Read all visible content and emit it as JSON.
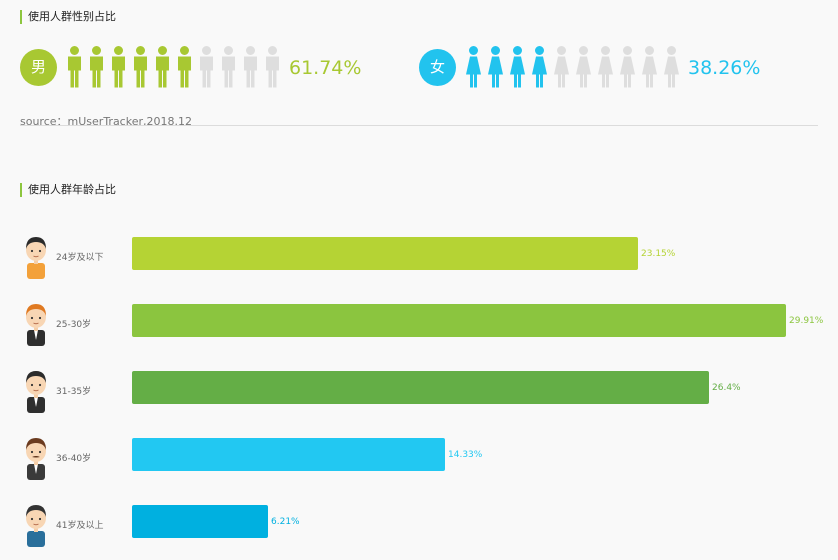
{
  "gender_section": {
    "title": "使用人群性别占比",
    "male": {
      "symbol": "男",
      "percent_label": "61.74%",
      "value": 61.74,
      "color": "#a8c832",
      "filled_icons": 6,
      "total_icons": 10
    },
    "female": {
      "symbol": "女",
      "percent_label": "38.26%",
      "value": 38.26,
      "color": "#22c3ee",
      "filled_icons": 4,
      "total_icons": 10
    },
    "source": "source：mUserTracker,2018.12"
  },
  "age_section": {
    "title": "使用人群年龄占比"
  },
  "chart_data": {
    "type": "bar",
    "orientation": "horizontal",
    "categories": [
      "24岁及以下",
      "25-30岁",
      "31-35岁",
      "36-40岁",
      "41岁及以上"
    ],
    "values": [
      23.15,
      29.91,
      26.4,
      14.33,
      6.21
    ],
    "value_labels": [
      "23.15%",
      "29.91%",
      "26.4%",
      "14.33%",
      "6.21%"
    ],
    "colors": [
      "#b5d334",
      "#8bc53f",
      "#64ae46",
      "#22c8f2",
      "#00b0e0"
    ],
    "avatar_icons": [
      "young-boy-avatar-icon",
      "red-hair-man-avatar-icon",
      "suit-man-avatar-icon",
      "mustache-man-avatar-icon",
      "older-man-avatar-icon"
    ],
    "xlim": [
      0,
      30
    ]
  }
}
